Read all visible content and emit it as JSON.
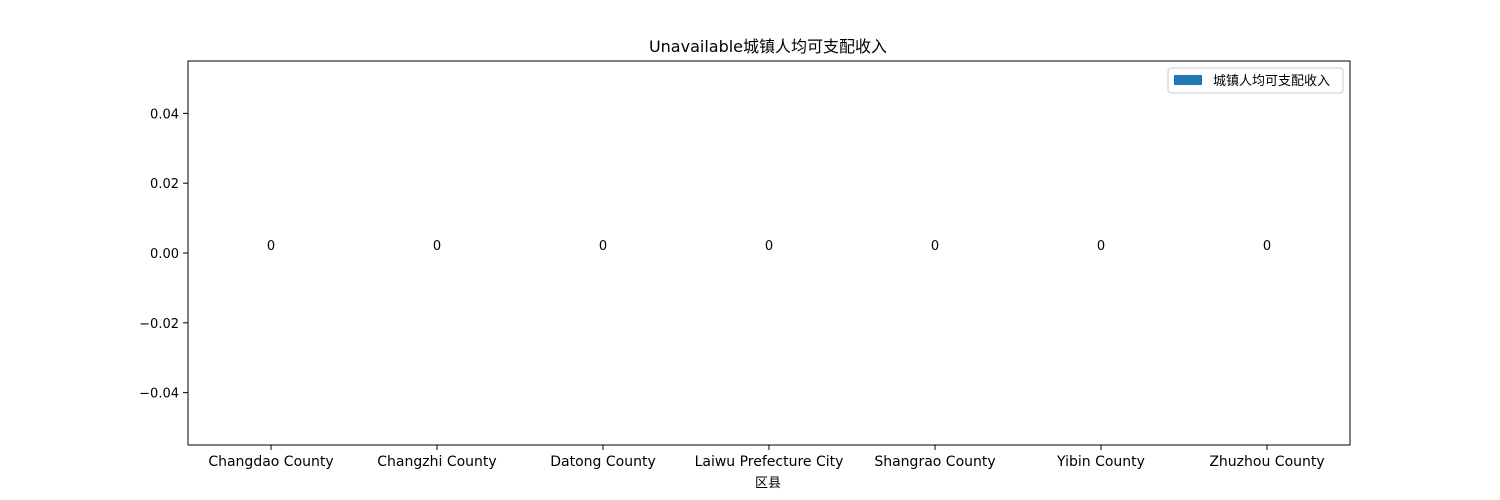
{
  "chart_data": {
    "type": "bar",
    "title": "Unavailable城镇人均可支配收入",
    "xlabel": "区县",
    "ylabel": "",
    "categories": [
      "Changdao County",
      "Changzhi County",
      "Datong County",
      "Laiwu Prefecture City",
      "Shangrao County",
      "Yibin County",
      "Zhuzhou County"
    ],
    "series": [
      {
        "name": "城镇人均可支配收入",
        "values": [
          0,
          0,
          0,
          0,
          0,
          0,
          0
        ],
        "color": "#1f77b4"
      }
    ],
    "data_labels": [
      "0",
      "0",
      "0",
      "0",
      "0",
      "0",
      "0"
    ],
    "yticks": [
      -0.04,
      -0.02,
      0.0,
      0.02,
      0.04
    ],
    "ytick_labels": [
      "−0.04",
      "−0.02",
      "0.00",
      "0.02",
      "0.04"
    ],
    "ylim": [
      -0.055,
      0.055
    ],
    "legend_position": "top-right",
    "grid": false
  }
}
